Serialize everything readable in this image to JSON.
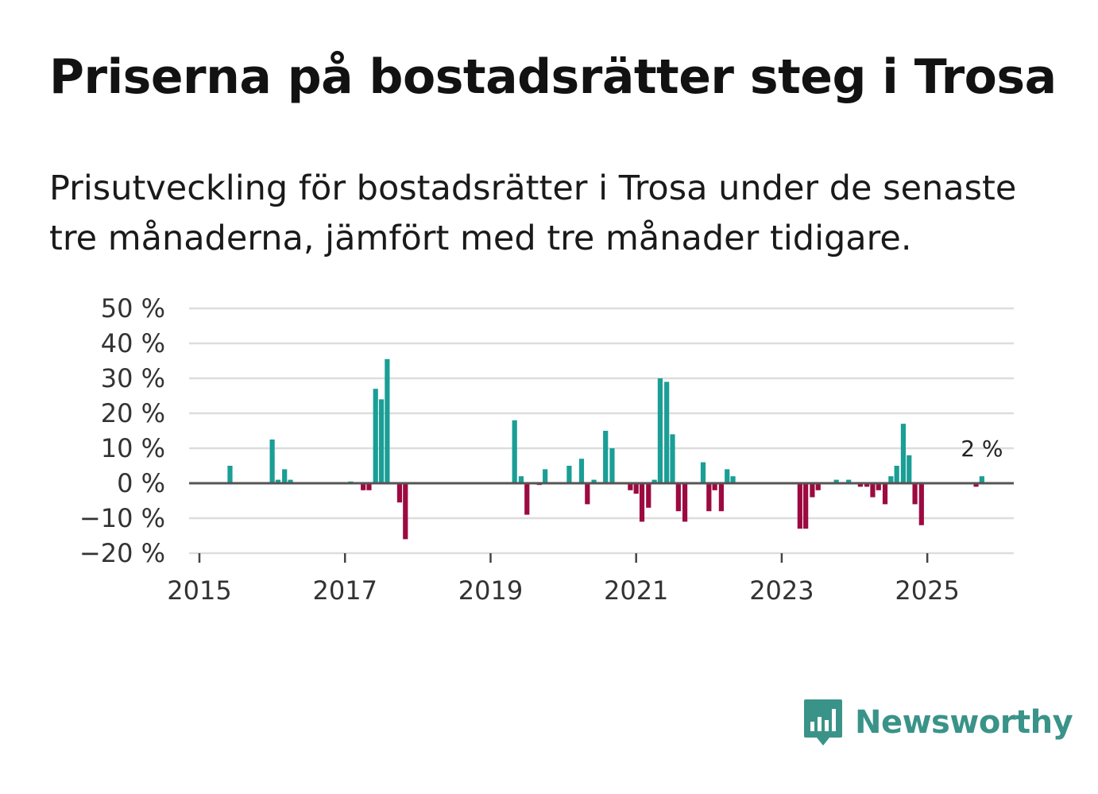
{
  "title": "Priserna på bostadsrätter steg i Trosa",
  "subtitle": "Prisutveckling för bostadsrätter i Trosa under de senaste tre månaderna, jämfört med tre månader tidigare.",
  "brand": {
    "name": "Newsworthy",
    "icon": "newsworthy-chart-bubble-icon",
    "color": "#3a9388"
  },
  "colors": {
    "positive": "#1a9e96",
    "negative": "#9c0a40",
    "gridline": "#dddddd",
    "zeroline": "#555555",
    "text": "#333333"
  },
  "chart_data": {
    "type": "bar",
    "title": "Priserna på bostadsrätter steg i Trosa",
    "xlabel": "",
    "ylabel": "",
    "ylim": [
      -20,
      50
    ],
    "xlim": [
      2015.0,
      2026.33
    ],
    "y_ticks": [
      {
        "value": 50,
        "label": "50 %"
      },
      {
        "value": 40,
        "label": "40 %"
      },
      {
        "value": 30,
        "label": "30 %"
      },
      {
        "value": 20,
        "label": "20 %"
      },
      {
        "value": 10,
        "label": "10 %"
      },
      {
        "value": 0,
        "label": "0 %"
      },
      {
        "value": -10,
        "label": "−10 %"
      },
      {
        "value": -20,
        "label": "−20 %"
      }
    ],
    "x_ticks": [
      {
        "value": 2015,
        "label": "2015"
      },
      {
        "value": 2017,
        "label": "2017"
      },
      {
        "value": 2019,
        "label": "2019"
      },
      {
        "value": 2021,
        "label": "2021"
      },
      {
        "value": 2023,
        "label": "2023"
      },
      {
        "value": 2025,
        "label": "2025"
      }
    ],
    "annotation": {
      "label": "2 %",
      "x": 2025.75,
      "y": 2
    },
    "series": [
      {
        "name": "Prisutveckling (%)",
        "points": [
          {
            "x": 2015.42,
            "y": 5
          },
          {
            "x": 2016.0,
            "y": 12.5
          },
          {
            "x": 2016.08,
            "y": 1
          },
          {
            "x": 2016.17,
            "y": 4
          },
          {
            "x": 2016.25,
            "y": 1
          },
          {
            "x": 2017.08,
            "y": 0.5
          },
          {
            "x": 2017.25,
            "y": -2
          },
          {
            "x": 2017.33,
            "y": -2
          },
          {
            "x": 2017.42,
            "y": 27
          },
          {
            "x": 2017.5,
            "y": 24
          },
          {
            "x": 2017.58,
            "y": 35.5
          },
          {
            "x": 2017.75,
            "y": -5.5
          },
          {
            "x": 2017.83,
            "y": -16
          },
          {
            "x": 2019.33,
            "y": 18
          },
          {
            "x": 2019.42,
            "y": 2
          },
          {
            "x": 2019.5,
            "y": -9
          },
          {
            "x": 2019.67,
            "y": -0.5
          },
          {
            "x": 2019.75,
            "y": 4
          },
          {
            "x": 2020.08,
            "y": 5
          },
          {
            "x": 2020.25,
            "y": 7
          },
          {
            "x": 2020.33,
            "y": -6
          },
          {
            "x": 2020.42,
            "y": 1
          },
          {
            "x": 2020.58,
            "y": 15
          },
          {
            "x": 2020.67,
            "y": 10
          },
          {
            "x": 2020.92,
            "y": -2
          },
          {
            "x": 2021.0,
            "y": -3
          },
          {
            "x": 2021.08,
            "y": -11
          },
          {
            "x": 2021.17,
            "y": -7
          },
          {
            "x": 2021.25,
            "y": 1
          },
          {
            "x": 2021.33,
            "y": 30
          },
          {
            "x": 2021.42,
            "y": 29
          },
          {
            "x": 2021.5,
            "y": 14
          },
          {
            "x": 2021.58,
            "y": -8
          },
          {
            "x": 2021.67,
            "y": -11
          },
          {
            "x": 2021.92,
            "y": 6
          },
          {
            "x": 2022.0,
            "y": -8
          },
          {
            "x": 2022.08,
            "y": -2
          },
          {
            "x": 2022.17,
            "y": -8
          },
          {
            "x": 2022.25,
            "y": 4
          },
          {
            "x": 2022.33,
            "y": 2
          },
          {
            "x": 2023.25,
            "y": -13
          },
          {
            "x": 2023.33,
            "y": -13
          },
          {
            "x": 2023.42,
            "y": -4
          },
          {
            "x": 2023.5,
            "y": -2
          },
          {
            "x": 2023.75,
            "y": 1
          },
          {
            "x": 2023.92,
            "y": 1
          },
          {
            "x": 2024.08,
            "y": -1
          },
          {
            "x": 2024.17,
            "y": -1
          },
          {
            "x": 2024.25,
            "y": -4
          },
          {
            "x": 2024.33,
            "y": -2
          },
          {
            "x": 2024.42,
            "y": -6
          },
          {
            "x": 2024.5,
            "y": 2
          },
          {
            "x": 2024.58,
            "y": 5
          },
          {
            "x": 2024.67,
            "y": 17
          },
          {
            "x": 2024.75,
            "y": 8
          },
          {
            "x": 2024.83,
            "y": -6
          },
          {
            "x": 2024.92,
            "y": -12
          },
          {
            "x": 2025.67,
            "y": -1
          },
          {
            "x": 2025.75,
            "y": 2
          }
        ]
      }
    ]
  }
}
